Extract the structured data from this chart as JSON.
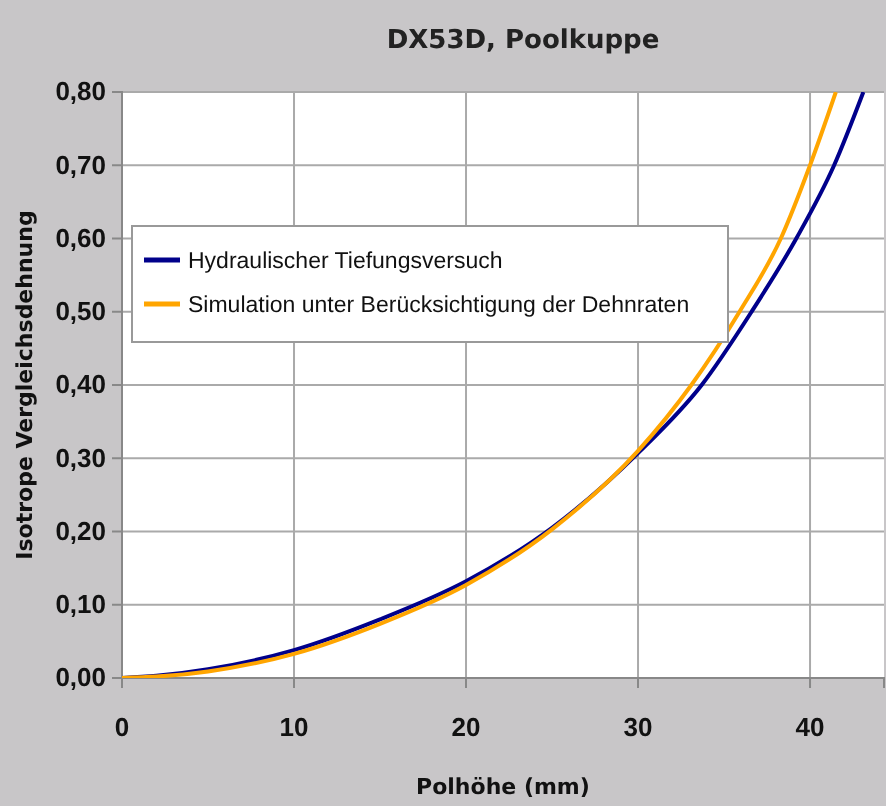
{
  "chart_data": {
    "type": "line",
    "title": "DX53D, Poolkuppe",
    "xlabel": "Polhöhe (mm)",
    "ylabel": "Isotrope Vergleichsdehnung",
    "xlim": [
      0,
      44.3
    ],
    "xticks": [
      0,
      10,
      20,
      30,
      40
    ],
    "ylim": [
      0,
      0.8
    ],
    "yticks": [
      {
        "value": 0,
        "label": "0,00"
      },
      {
        "value": 0.1,
        "label": "0,10"
      },
      {
        "value": 0.2,
        "label": "0,20"
      },
      {
        "value": 0.3,
        "label": "0,30"
      },
      {
        "value": 0.4,
        "label": "0,40"
      },
      {
        "value": 0.5,
        "label": "0,50"
      },
      {
        "value": 0.6,
        "label": "0,60"
      },
      {
        "value": 0.7,
        "label": "0,70"
      },
      {
        "value": 0.8,
        "label": "0,80"
      }
    ],
    "grid": true,
    "legend": "top left",
    "marker": "none",
    "line_style": "solid",
    "series": [
      {
        "name": "Hydraulischer Tiefungsversuch",
        "color": "#00008b",
        "x": [
          0,
          2,
          5,
          10,
          15,
          20,
          25,
          30,
          33.7,
          36.6,
          39.2,
          41.4,
          43.1
        ],
        "values": [
          0,
          0.003,
          0.012,
          0.038,
          0.08,
          0.132,
          0.205,
          0.307,
          0.4,
          0.5,
          0.6,
          0.7,
          0.8
        ]
      },
      {
        "name": "Simulation unter Berücksichtigung der Dehnraten",
        "color": "#ffa500",
        "x": [
          0,
          2,
          5,
          10,
          15,
          20,
          25,
          30,
          33.1,
          35.9,
          38.3,
          40,
          41.5
        ],
        "values": [
          0,
          0.002,
          0.009,
          0.033,
          0.074,
          0.127,
          0.203,
          0.31,
          0.4,
          0.5,
          0.6,
          0.7,
          0.8
        ]
      }
    ]
  }
}
